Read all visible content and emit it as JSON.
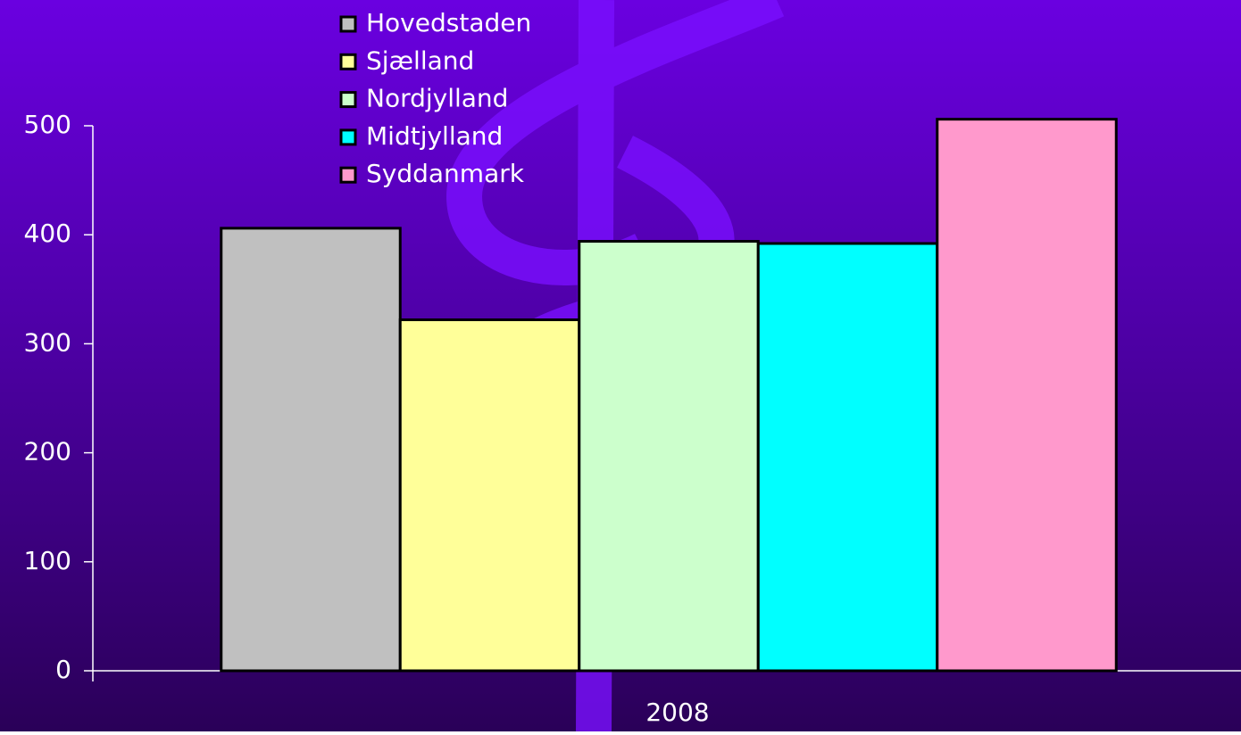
{
  "chart_data": {
    "type": "bar",
    "categories": [
      "2008"
    ],
    "series": [
      {
        "name": "Hovedstaden",
        "color": "#c0c0c0",
        "values": [
          406
        ]
      },
      {
        "name": "Sjælland",
        "color": "#ffff99",
        "values": [
          322
        ]
      },
      {
        "name": "Nordjylland",
        "color": "#ccffcc",
        "values": [
          394
        ]
      },
      {
        "name": "Midtjylland",
        "color": "#00ffff",
        "values": [
          392
        ]
      },
      {
        "name": "Syddanmark",
        "color": "#ff99cc",
        "values": [
          506
        ]
      }
    ],
    "ylim": [
      0,
      500
    ],
    "yticks": [
      0,
      100,
      200,
      300,
      400,
      500
    ],
    "grid": false,
    "legend": "top-left"
  }
}
